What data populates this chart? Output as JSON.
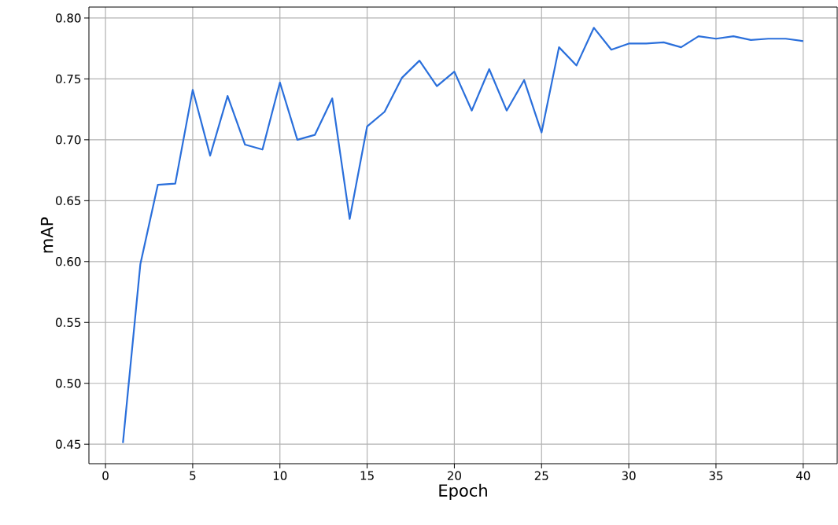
{
  "chart_data": {
    "type": "line",
    "xlabel": "Epoch",
    "ylabel": "mAP",
    "x": [
      1,
      2,
      3,
      4,
      5,
      6,
      7,
      8,
      9,
      10,
      11,
      12,
      13,
      14,
      15,
      16,
      17,
      18,
      19,
      20,
      21,
      22,
      23,
      24,
      25,
      26,
      27,
      28,
      29,
      30,
      31,
      32,
      33,
      34,
      35,
      36,
      37,
      38,
      39,
      40
    ],
    "series": [
      {
        "color": "#2a6fdb",
        "values": [
          0.451,
          0.598,
          0.663,
          0.664,
          0.741,
          0.687,
          0.736,
          0.696,
          0.692,
          0.747,
          0.7,
          0.704,
          0.734,
          0.635,
          0.711,
          0.723,
          0.751,
          0.765,
          0.744,
          0.756,
          0.724,
          0.758,
          0.724,
          0.749,
          0.706,
          0.776,
          0.761,
          0.792,
          0.774,
          0.779,
          0.779,
          0.78,
          0.776,
          0.785,
          0.783,
          0.785,
          0.782,
          0.783,
          0.783,
          0.781
        ]
      }
    ],
    "xlim": [
      -0.95,
      41.95
    ],
    "ylim": [
      0.434,
      0.809
    ],
    "xticks": [
      0,
      5,
      10,
      15,
      20,
      25,
      30,
      35,
      40
    ],
    "yticks": [
      {
        "value": 0.45,
        "label": "0.45"
      },
      {
        "value": 0.5,
        "label": "0.50"
      },
      {
        "value": 0.55,
        "label": "0.55"
      },
      {
        "value": 0.6,
        "label": "0.60"
      },
      {
        "value": 0.65,
        "label": "0.65"
      },
      {
        "value": 0.7,
        "label": "0.70"
      },
      {
        "value": 0.75,
        "label": "0.75"
      },
      {
        "value": 0.8,
        "label": "0.80"
      }
    ],
    "grid": true,
    "marker": "none",
    "line_style": "solid"
  }
}
